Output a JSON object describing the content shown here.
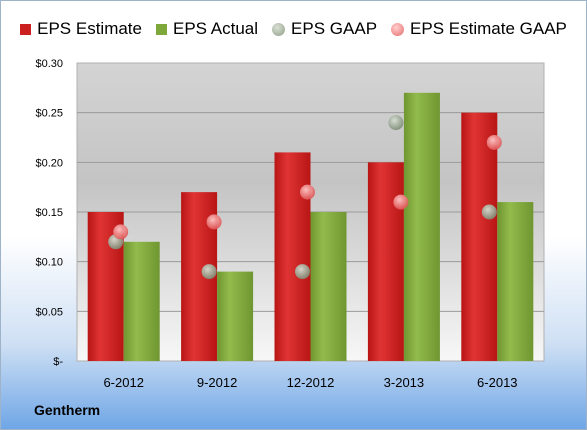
{
  "colors": {
    "estimate": "#cc1f1f",
    "actual": "#7fa83a",
    "gaap": "#a7b4a0",
    "estimate_gaap": "#f08a8a"
  },
  "chart_data": {
    "type": "bar",
    "categories": [
      "6-2012",
      "9-2012",
      "12-2012",
      "3-2013",
      "6-2013"
    ],
    "series": [
      {
        "name": "EPS Estimate",
        "kind": "bar",
        "values": [
          0.15,
          0.17,
          0.21,
          0.2,
          0.25
        ]
      },
      {
        "name": "EPS Actual",
        "kind": "bar",
        "values": [
          0.12,
          0.09,
          0.15,
          0.27,
          0.16
        ]
      },
      {
        "name": "EPS GAAP",
        "kind": "point",
        "values": [
          0.12,
          0.09,
          0.09,
          0.24,
          0.15
        ]
      },
      {
        "name": "EPS Estimate GAAP",
        "kind": "point",
        "values": [
          0.13,
          0.14,
          0.17,
          0.16,
          0.22
        ]
      }
    ],
    "yticks": [
      "$-",
      "$0.05",
      "$0.10",
      "$0.15",
      "$0.20",
      "$0.25",
      "$0.30"
    ],
    "ylim": [
      0,
      0.3
    ],
    "grid": true,
    "legend_position": "top"
  },
  "footer": {
    "company": "Gentherm"
  }
}
